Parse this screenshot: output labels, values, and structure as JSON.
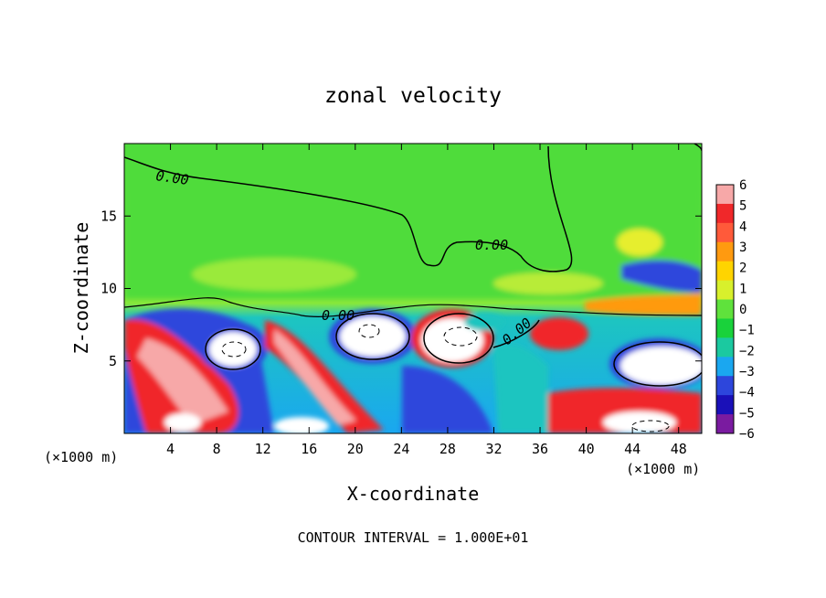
{
  "chart_data": {
    "type": "heatmap",
    "title": "zonal velocity",
    "xlabel": "X-coordinate",
    "ylabel": "Z-coordinate",
    "x_unit_label": "(×1000 m)",
    "y_unit_label": "(×1000 m)",
    "xlim": [
      0,
      50
    ],
    "ylim": [
      0,
      20
    ],
    "x_ticks": [
      4,
      8,
      12,
      16,
      20,
      24,
      28,
      32,
      36,
      40,
      44,
      48
    ],
    "y_ticks": [
      5,
      10,
      15
    ],
    "colorbar": {
      "ticks": [
        6,
        5,
        4,
        3,
        2,
        1,
        0,
        -1,
        -2,
        -3,
        -4,
        -5,
        -6
      ],
      "colors": [
        "#f7a8a8",
        "#f0282a",
        "#ff5a3a",
        "#ff9a10",
        "#ffd400",
        "#d8f02c",
        "#5fe23c",
        "#19d23b",
        "#1bc9a0",
        "#1aa7f0",
        "#2d46dc",
        "#1a10b8",
        "#7a1ba0"
      ]
    },
    "contour_labels": [
      "0.00",
      "0.00",
      "0.00",
      "0.00"
    ],
    "footer": "CONTOUR INTERVAL = 1.000E+01"
  }
}
